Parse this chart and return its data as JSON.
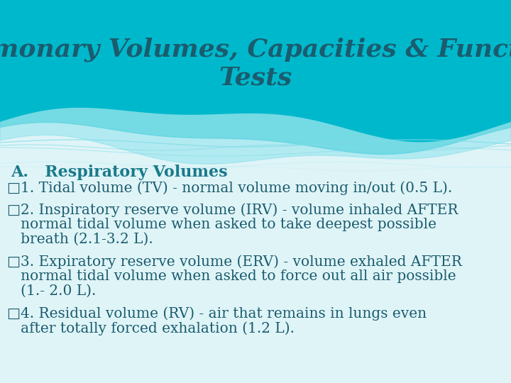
{
  "title_line1": "Pulmonary Volumes, Capacities & Function",
  "title_line2": "Tests",
  "title_color": "#1a5c6e",
  "title_fontsize": 26,
  "bg_color_slide": "#dff4f7",
  "wave_color_main": "#00b8cc",
  "wave_color_light": "#80dce8",
  "wave_color_lighter": "#b0ecf4",
  "section_label": "A.",
  "section_text": "   Respiratory Volumes",
  "section_color": "#1a7a8a",
  "section_fontsize": 16,
  "bullets": [
    {
      "first": "□1. Tidal volume (TV) - normal volume moving in/out (0.5 L).",
      "cont": []
    },
    {
      "first": "□2. Inspiratory reserve volume (IRV) - volume inhaled AFTER",
      "cont": [
        "   normal tidal volume when asked to take deepest possible",
        "   breath (2.1-3.2 L)."
      ]
    },
    {
      "first": "□3. Expiratory reserve volume (ERV) - volume exhaled AFTER",
      "cont": [
        "   normal tidal volume when asked to force out all air possible",
        "   (1.- 2.0 L)."
      ]
    },
    {
      "first": "□4. Residual volume (RV) - air that remains in lungs even",
      "cont": [
        "   after totally forced exhalation (1.2 L)."
      ]
    }
  ],
  "bullet_color": "#1a5c6e",
  "bullet_fontsize": 14.5
}
